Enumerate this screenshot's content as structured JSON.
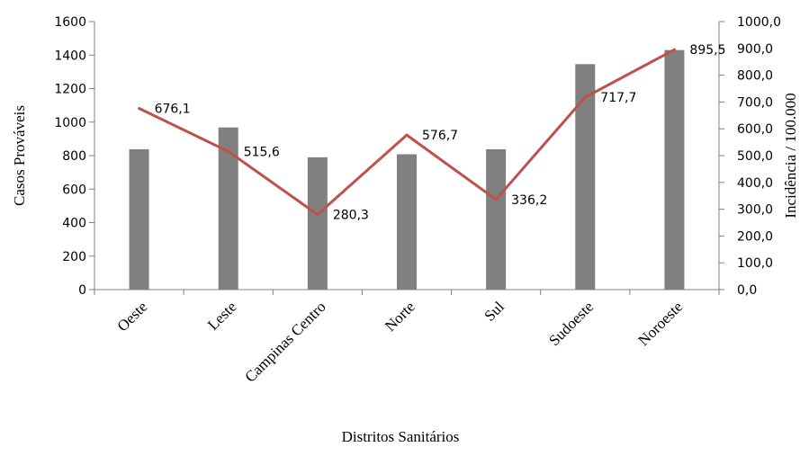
{
  "chart_data": {
    "type": "bar",
    "categories": [
      "Oeste",
      "Leste",
      "Campinas Centro",
      "Norte",
      "Sul",
      "Sudoeste",
      "Noroeste"
    ],
    "series": [
      {
        "type": "bar",
        "axis": "left",
        "values": [
          838,
          968,
          790,
          808,
          838,
          1346,
          1430
        ]
      },
      {
        "type": "line",
        "axis": "right",
        "values": [
          676.1,
          515.6,
          280.3,
          576.7,
          336.2,
          717.7,
          895.5
        ]
      }
    ],
    "data_labels": [
      "676,1",
      "515,6",
      "280,3",
      "576,7",
      "336,2",
      "717,7",
      "895,5"
    ],
    "xlabel": "Distritos Sanitários",
    "ylabel": "Casos Prováveis",
    "y2label": "Incidência / 100.000",
    "ylim": [
      0,
      1600
    ],
    "y2lim": [
      0,
      1000
    ],
    "yticks": [
      "0",
      "200",
      "400",
      "600",
      "800",
      "1000",
      "1200",
      "1400",
      "1600"
    ],
    "y2ticks": [
      "0,0",
      "100,0",
      "200,0",
      "300,0",
      "400,0",
      "500,0",
      "600,0",
      "700,0",
      "800,0",
      "900,0",
      "1000,0"
    ],
    "colors": {
      "bar": "#808080",
      "line": "#c0504d",
      "axis": "#808080"
    },
    "grid": false,
    "legend": "none"
  }
}
